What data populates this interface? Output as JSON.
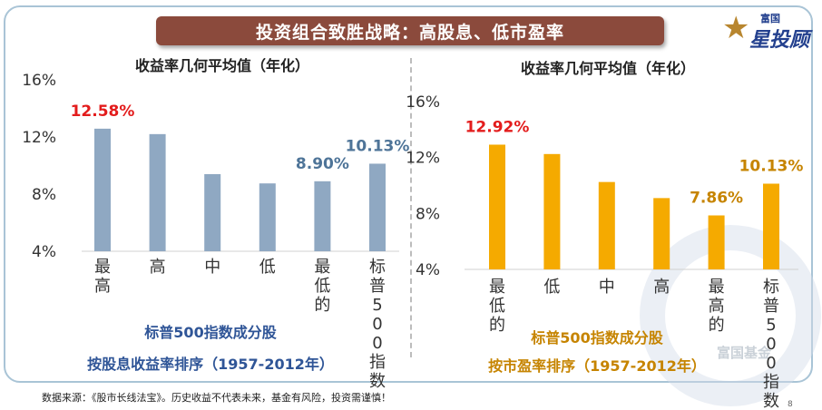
{
  "title": "投资组合致胜战略：高股息、低市盈率",
  "logo": {
    "top": "富国",
    "main": "星投顾"
  },
  "watermark": "富国基金",
  "footer": "数据来源：《股市长线法宝》。历史收益不代表未来，基金有风险，投资需谨慎！",
  "page_number": "8",
  "colors": {
    "left_bar": "#8fa8c2",
    "right_bar": "#f5aa00",
    "highlight_red": "#e31c1c",
    "left_label": "#4e7498",
    "right_label": "#c68400",
    "left_caption": "#2f5597",
    "right_caption": "#c68400",
    "title_bg": "#8b4a3c"
  },
  "chart_data": [
    {
      "type": "bar",
      "title": "收益率几何平均值（年化）",
      "categories": [
        "最高",
        "高",
        "中",
        "低",
        "最低的",
        "标普500指数"
      ],
      "values": [
        12.58,
        12.2,
        9.4,
        8.75,
        8.9,
        10.13
      ],
      "ylim": [
        4,
        16
      ],
      "yticks": [
        "4%",
        "8%",
        "12%",
        "16%"
      ],
      "data_labels": [
        {
          "index": 0,
          "text": "12.58%",
          "color": "red"
        },
        {
          "index": 4,
          "text": "8.90%",
          "color": "blue"
        },
        {
          "index": 5,
          "text": "10.13%",
          "color": "blue"
        }
      ],
      "caption": [
        "标普500指数成分股",
        "按股息收益率排序（1957-2012年）"
      ]
    },
    {
      "type": "bar",
      "title": "收益率几何平均值（年化）",
      "categories": [
        "最低的",
        "低",
        "中",
        "高",
        "最高的",
        "标普500指数"
      ],
      "values": [
        12.92,
        12.25,
        10.25,
        9.1,
        7.86,
        10.13
      ],
      "ylim": [
        4,
        16
      ],
      "yticks": [
        "4%",
        "8%",
        "12%",
        "16%"
      ],
      "data_labels": [
        {
          "index": 0,
          "text": "12.92%",
          "color": "red"
        },
        {
          "index": 4,
          "text": "7.86%",
          "color": "orange"
        },
        {
          "index": 5,
          "text": "10.13%",
          "color": "orange"
        }
      ],
      "caption": [
        "标普500指数成分股",
        "按市盈率排序（1957-2012年）"
      ]
    }
  ]
}
